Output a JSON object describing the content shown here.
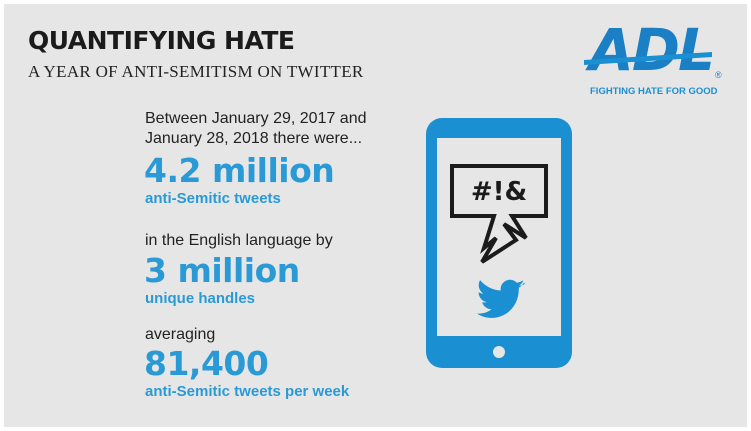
{
  "header": {
    "title": "QUANTIFYING HATE",
    "subtitle": "A YEAR OF ANTI-SEMITISM ON TWITTER"
  },
  "logo": {
    "name": "ADL",
    "mark": "®",
    "tagline": "FIGHTING HATE FOR GOOD"
  },
  "intro": [
    "Between January 29, 2017 and",
    "January 28, 2018 there were..."
  ],
  "stats": [
    {
      "number": "4.2 million",
      "label": "anti-Semitic tweets"
    },
    {
      "lead": "in the English language by",
      "number": "3 million",
      "label": "unique handles"
    },
    {
      "lead": "averaging",
      "number": "81,400",
      "label": "anti-Semitic tweets per week"
    }
  ],
  "phone": {
    "bubble": "#!&"
  }
}
